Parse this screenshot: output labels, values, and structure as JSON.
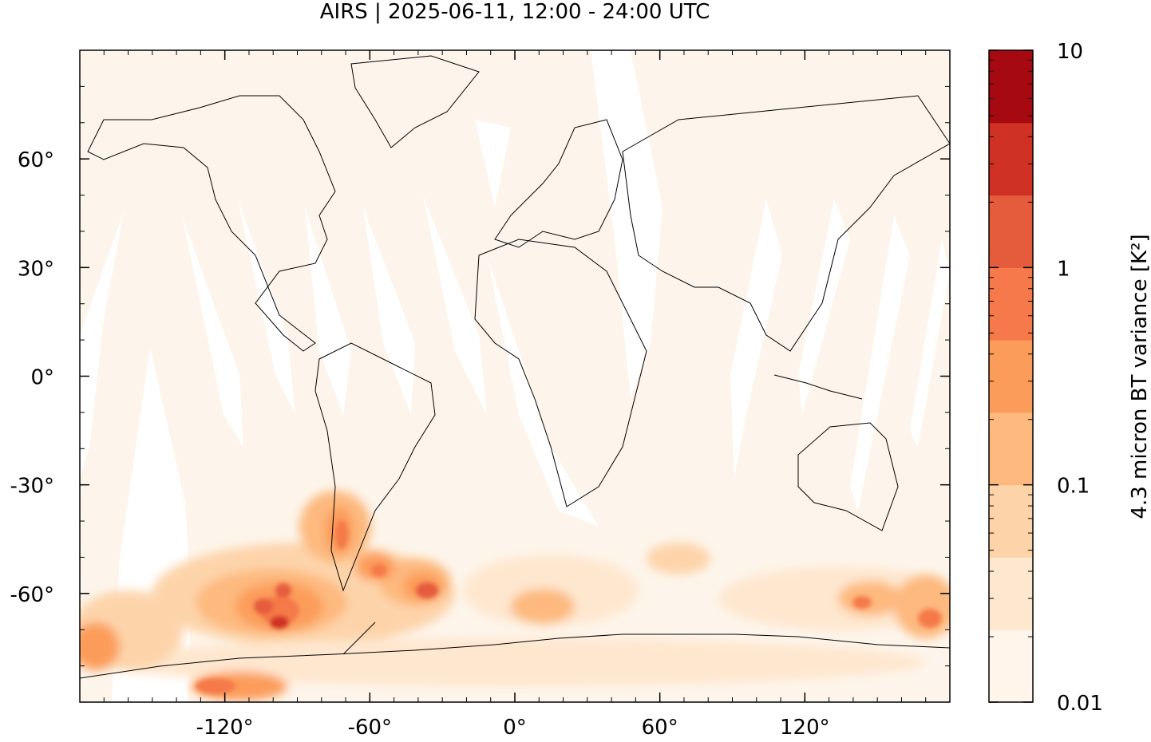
{
  "title": "AIRS | 2025-06-11, 12:00 - 24:00 UTC",
  "map": {
    "projection": "plate-carree",
    "lon_range": [
      -180,
      180
    ],
    "lat_range": [
      -90,
      90
    ],
    "x_ticks": [
      {
        "value": -120,
        "label": "-120°"
      },
      {
        "value": -60,
        "label": "-60°"
      },
      {
        "value": 0,
        "label": "0°"
      },
      {
        "value": 60,
        "label": "60°"
      },
      {
        "value": 120,
        "label": "120°"
      }
    ],
    "y_ticks": [
      {
        "value": 60,
        "label": "60°"
      },
      {
        "value": 30,
        "label": "30°"
      },
      {
        "value": 0,
        "label": "0°"
      },
      {
        "value": -30,
        "label": "-30°"
      },
      {
        "value": -60,
        "label": "-60°"
      }
    ],
    "background_color": "#fdf5eb",
    "coastline_color": "#000000"
  },
  "colorbar": {
    "label": "4.3 micron BT variance [K²]",
    "scale": "log",
    "range": [
      0.01,
      10
    ],
    "ticks": [
      {
        "value": 10,
        "label": "10"
      },
      {
        "value": 1,
        "label": "1"
      },
      {
        "value": 0.1,
        "label": "0.1"
      },
      {
        "value": 0.01,
        "label": "0.01"
      }
    ],
    "colors": [
      "#fff5eb",
      "#fee7cf",
      "#fdd4aa",
      "#fdb97e",
      "#fc9c5a",
      "#f5794a",
      "#e55c3c",
      "#cf3224",
      "#a60a10"
    ]
  }
}
